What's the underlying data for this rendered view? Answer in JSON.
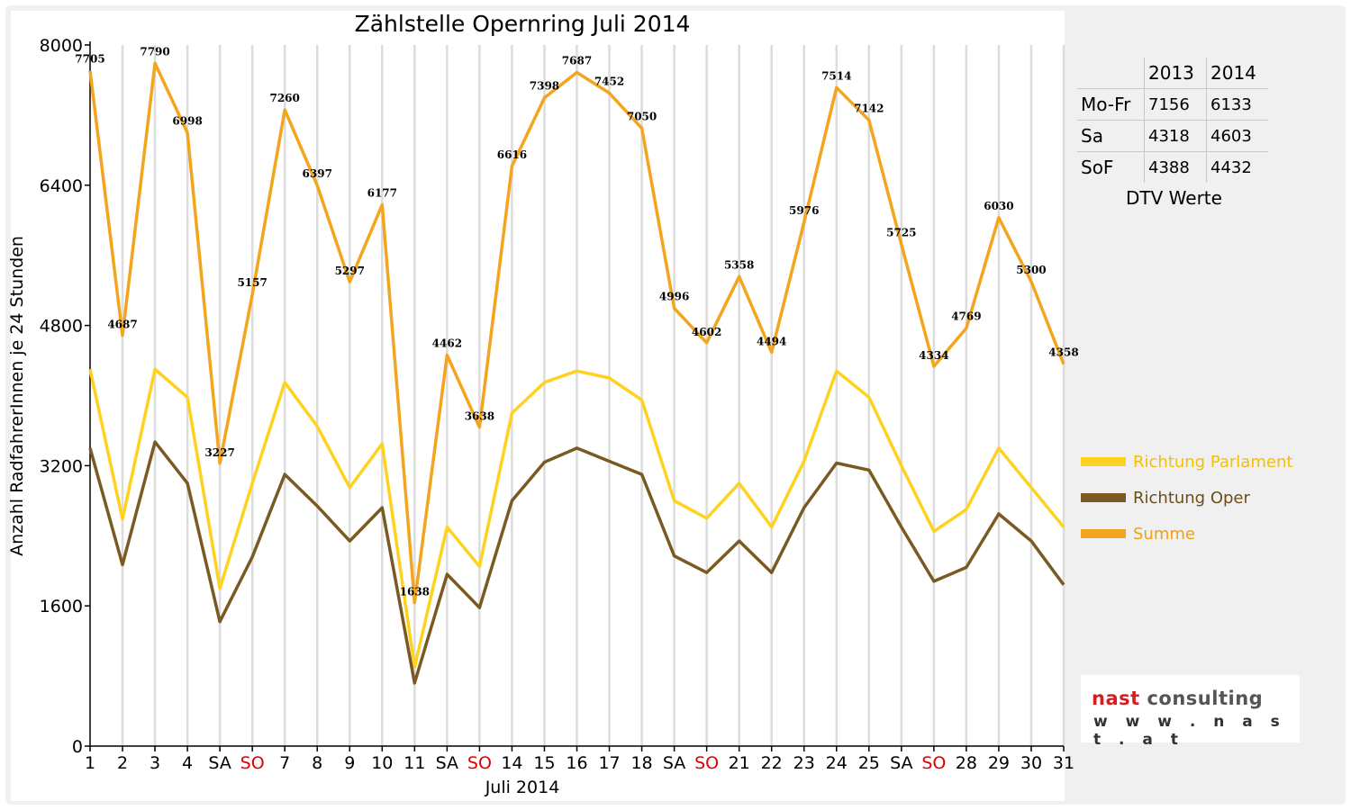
{
  "chart_data": {
    "type": "line",
    "title": "Zählstelle Opernring Juli 2014",
    "ylabel": "Anzahl RadfahrerInnen je 24 Stunden",
    "xlabel": "Juli 2014",
    "ylim": [
      0,
      8000
    ],
    "yticks": [
      0,
      1600,
      3200,
      4800,
      6400,
      8000
    ],
    "grid": "vertical",
    "categories": [
      "1",
      "2",
      "3",
      "4",
      "SA",
      "SO",
      "7",
      "8",
      "9",
      "10",
      "11",
      "SA",
      "SO",
      "14",
      "15",
      "16",
      "17",
      "18",
      "SA",
      "SO",
      "21",
      "22",
      "23",
      "24",
      "25",
      "SA",
      "SO",
      "28",
      "29",
      "30",
      "31"
    ],
    "weekend_colors": {
      "SA": "#000000",
      "SO": "#e00000"
    },
    "series": [
      {
        "name": "Richtung Parlament",
        "color": "#ffd21f",
        "values": [
          4300,
          2590,
          4300,
          3980,
          1800,
          3000,
          4150,
          3650,
          2950,
          3450,
          900,
          2500,
          2050,
          3800,
          4150,
          4280,
          4200,
          3950,
          2800,
          2600,
          3000,
          2500,
          3250,
          4280,
          3980,
          3200,
          2450,
          2700,
          3400,
          2950,
          2500
        ]
      },
      {
        "name": "Richtung Oper",
        "color": "#7a5a22",
        "values": [
          3400,
          2070,
          3470,
          3000,
          1420,
          2160,
          3100,
          2740,
          2340,
          2720,
          720,
          1960,
          1580,
          2800,
          3240,
          3400,
          3250,
          3100,
          2170,
          1980,
          2340,
          1980,
          2720,
          3230,
          3150,
          2500,
          1880,
          2040,
          2650,
          2340,
          1840
        ]
      },
      {
        "name": "Summe",
        "color": "#f4a51e",
        "values": [
          7705,
          4687,
          7790,
          6998,
          3227,
          5157,
          7260,
          6397,
          5297,
          6177,
          1638,
          4462,
          3638,
          6616,
          7398,
          7687,
          7452,
          7050,
          4996,
          4602,
          5358,
          4494,
          5976,
          7514,
          7142,
          5725,
          4334,
          4769,
          6030,
          5300,
          4358
        ]
      }
    ],
    "data_labels": [
      "7705",
      "4687",
      "7790",
      "6998",
      "3227",
      "5157",
      "7260",
      "6397",
      "5297",
      "6177",
      "1638",
      "4462",
      "3638",
      "6616",
      "7398",
      "7687",
      "7452",
      "7050",
      "4996",
      "4602",
      "5358",
      "4494",
      "5976",
      "7514",
      "7142",
      "5725",
      "4334",
      "4769",
      "6030",
      "5300",
      "4358"
    ],
    "legend_position": "right"
  },
  "dtv_table": {
    "headers": [
      "",
      "2013",
      "2014"
    ],
    "rows": [
      {
        "label": "Mo-Fr",
        "v2013": "7156",
        "v2014": "6133"
      },
      {
        "label": "Sa",
        "v2013": "4318",
        "v2014": "4603"
      },
      {
        "label": "SoF",
        "v2013": "4388",
        "v2014": "4432"
      }
    ],
    "caption": "DTV Werte"
  },
  "logo": {
    "name_red": "nast",
    "name_grey": "consulting",
    "url": "w w w . n a s t . a t"
  }
}
